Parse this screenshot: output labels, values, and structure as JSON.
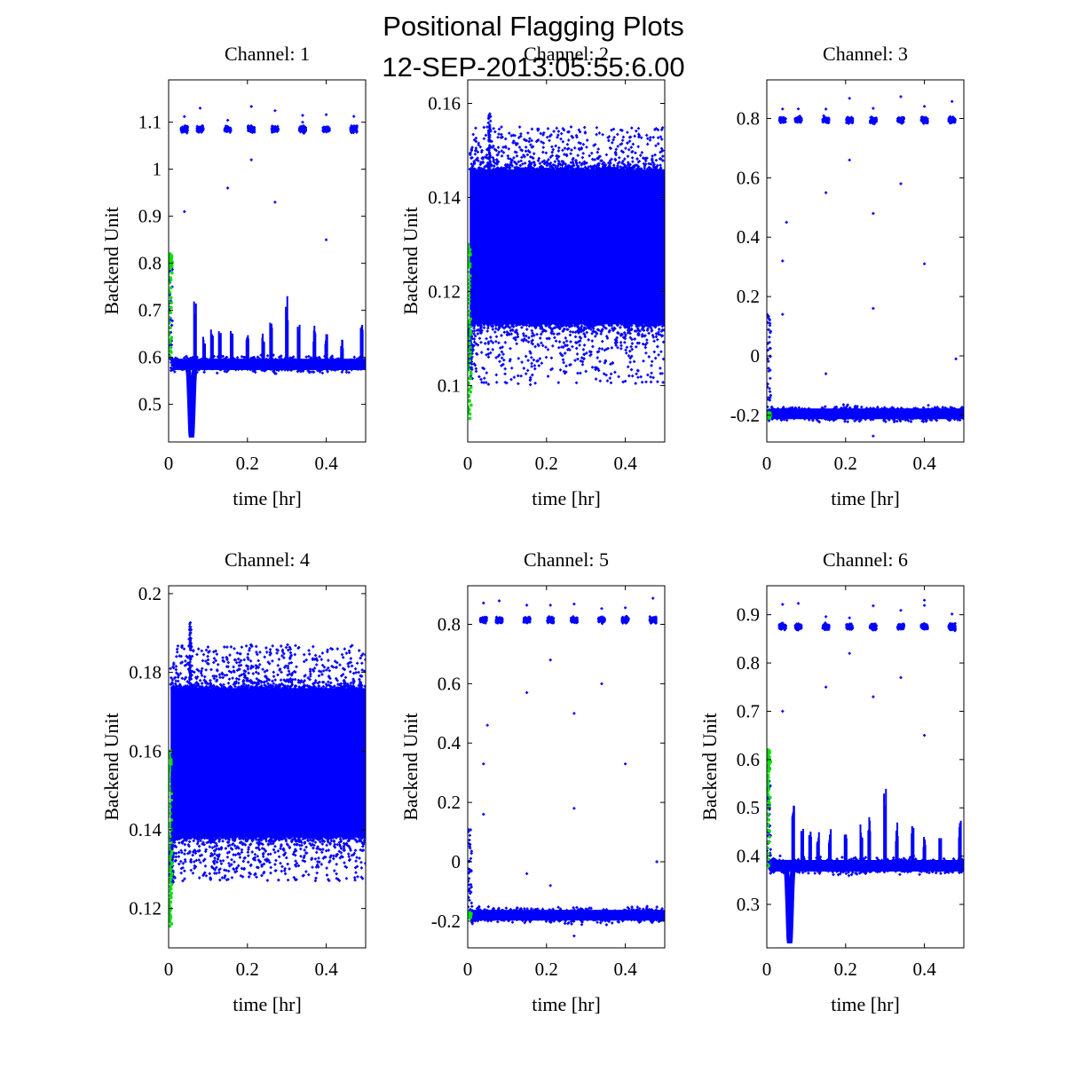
{
  "figure": {
    "title_line1": "Positional Flagging Plots",
    "title_line2": "12-SEP-2013:05:55:6.00"
  },
  "colors": {
    "data": "#0000ff",
    "flagged": "#00e000",
    "axes": "#000000"
  },
  "chart_data": [
    {
      "type": "scatter",
      "title": "Channel: 1",
      "xlabel": "time [hr]",
      "ylabel": "Backend Unit",
      "xlim": [
        0,
        0.5
      ],
      "ylim": [
        0.42,
        1.19
      ],
      "xticks": [
        0,
        0.2,
        0.4
      ],
      "xtick_labels": [
        "0",
        "0.2",
        "0.4"
      ],
      "yticks": [
        0.5,
        0.6,
        0.7,
        0.8,
        0.9,
        1,
        1.1
      ],
      "ytick_labels": [
        "0.5",
        "0.6",
        "0.7",
        "0.8",
        "0.9",
        "1",
        "1.1"
      ],
      "series": [
        {
          "color": "#0000ff",
          "baseline": 0.585,
          "spread": 0.012,
          "spikes": [
            [
              0.067,
              0.72
            ],
            [
              0.09,
              0.65
            ],
            [
              0.11,
              0.66
            ],
            [
              0.13,
              0.66
            ],
            [
              0.16,
              0.66
            ],
            [
              0.2,
              0.65
            ],
            [
              0.24,
              0.66
            ],
            [
              0.26,
              0.69
            ],
            [
              0.3,
              0.74
            ],
            [
              0.33,
              0.67
            ],
            [
              0.37,
              0.67
            ],
            [
              0.4,
              0.65
            ],
            [
              0.44,
              0.64
            ],
            [
              0.49,
              0.68
            ]
          ],
          "dip": [
            0.058,
            0.43
          ],
          "upper_clusters": [
            0.04,
            0.08,
            0.15,
            0.21,
            0.27,
            0.34,
            0.4,
            0.47
          ],
          "upper_level": 1.085,
          "outliers": [
            [
              0.04,
              0.91
            ],
            [
              0.15,
              0.96
            ],
            [
              0.21,
              1.02
            ],
            [
              0.27,
              0.93
            ],
            [
              0.4,
              0.85
            ],
            [
              0.34,
              1.1
            ]
          ]
        },
        {
          "color": "#00e000",
          "points": [
            [
              0.001,
              0.59
            ],
            [
              0.002,
              0.8
            ],
            [
              0.004,
              0.82
            ],
            [
              0.006,
              0.79
            ],
            [
              0.003,
              0.6
            ]
          ]
        }
      ]
    },
    {
      "type": "scatter",
      "title": "Channel: 2",
      "xlabel": "time [hr]",
      "ylabel": "Backend Unit",
      "xlim": [
        0,
        0.5
      ],
      "ylim": [
        0.088,
        0.165
      ],
      "xticks": [
        0,
        0.2,
        0.4
      ],
      "xtick_labels": [
        "0",
        "0.2",
        "0.4"
      ],
      "yticks": [
        0.1,
        0.12,
        0.14,
        0.16
      ],
      "ytick_labels": [
        "0.1",
        "0.12",
        "0.14",
        "0.16"
      ],
      "series": [
        {
          "color": "#0000ff",
          "dense_band": [
            0.113,
            0.146
          ],
          "band_scatter": [
            0.1,
            0.155
          ],
          "peak": [
            0.055,
            0.158
          ]
        },
        {
          "color": "#00e000",
          "points": [
            [
              0.002,
              0.13
            ],
            [
              0.003,
              0.125
            ],
            [
              0.004,
              0.11
            ],
            [
              0.005,
              0.093
            ],
            [
              0.003,
              0.115
            ]
          ]
        }
      ]
    },
    {
      "type": "scatter",
      "title": "Channel: 3",
      "xlabel": "time [hr]",
      "ylabel": "",
      "xlim": [
        0,
        0.5
      ],
      "ylim": [
        -0.29,
        0.93
      ],
      "xticks": [
        0,
        0.2,
        0.4
      ],
      "xtick_labels": [
        "0",
        "0.2",
        "0.4"
      ],
      "yticks": [
        -0.2,
        0,
        0.2,
        0.4,
        0.6,
        0.8
      ],
      "ytick_labels": [
        "-0.2",
        "0",
        "0.2",
        "0.4",
        "0.6",
        "0.8"
      ],
      "series": [
        {
          "color": "#0000ff",
          "baseline": -0.195,
          "spread": 0.018,
          "upper_clusters": [
            0.04,
            0.08,
            0.15,
            0.21,
            0.27,
            0.34,
            0.4,
            0.47
          ],
          "upper_level": 0.795,
          "outliers": [
            [
              0.04,
              0.32
            ],
            [
              0.04,
              0.14
            ],
            [
              0.05,
              0.45
            ],
            [
              0.15,
              0.55
            ],
            [
              0.21,
              0.66
            ],
            [
              0.27,
              0.48
            ],
            [
              0.27,
              0.16
            ],
            [
              0.34,
              0.58
            ],
            [
              0.4,
              0.31
            ],
            [
              0.48,
              -0.01
            ],
            [
              0.15,
              -0.06
            ],
            [
              0.27,
              -0.27
            ]
          ]
        },
        {
          "color": "#00e000",
          "points": [
            [
              0.002,
              -0.2
            ],
            [
              0.004,
              -0.21
            ],
            [
              0.006,
              -0.19
            ]
          ]
        }
      ]
    },
    {
      "type": "scatter",
      "title": "Channel: 4",
      "xlabel": "time [hr]",
      "ylabel": "Backend Unit",
      "xlim": [
        0,
        0.5
      ],
      "ylim": [
        0.11,
        0.202
      ],
      "xticks": [
        0,
        0.2,
        0.4
      ],
      "xtick_labels": [
        "0",
        "0.2",
        "0.4"
      ],
      "yticks": [
        0.12,
        0.14,
        0.16,
        0.18,
        0.2
      ],
      "ytick_labels": [
        "0.12",
        "0.14",
        "0.16",
        "0.18",
        "0.2"
      ],
      "series": [
        {
          "color": "#0000ff",
          "dense_band": [
            0.138,
            0.176
          ],
          "band_scatter": [
            0.127,
            0.187
          ],
          "peak": [
            0.055,
            0.193
          ]
        },
        {
          "color": "#00e000",
          "points": [
            [
              0.002,
              0.16
            ],
            [
              0.003,
              0.15
            ],
            [
              0.004,
              0.135
            ],
            [
              0.005,
              0.125
            ],
            [
              0.003,
              0.115
            ]
          ]
        }
      ]
    },
    {
      "type": "scatter",
      "title": "Channel: 5",
      "xlabel": "time [hr]",
      "ylabel": "Backend Unit",
      "xlim": [
        0,
        0.5
      ],
      "ylim": [
        -0.29,
        0.93
      ],
      "xticks": [
        0,
        0.2,
        0.4
      ],
      "xtick_labels": [
        "0",
        "0.2",
        "0.4"
      ],
      "yticks": [
        -0.2,
        0,
        0.2,
        0.4,
        0.6,
        0.8
      ],
      "ytick_labels": [
        "-0.2",
        "0",
        "0.2",
        "0.4",
        "0.6",
        "0.8"
      ],
      "series": [
        {
          "color": "#0000ff",
          "baseline": -0.18,
          "spread": 0.018,
          "upper_clusters": [
            0.04,
            0.08,
            0.15,
            0.21,
            0.27,
            0.34,
            0.4,
            0.47
          ],
          "upper_level": 0.815,
          "outliers": [
            [
              0.04,
              0.33
            ],
            [
              0.04,
              0.16
            ],
            [
              0.05,
              0.46
            ],
            [
              0.15,
              0.57
            ],
            [
              0.21,
              0.68
            ],
            [
              0.27,
              0.5
            ],
            [
              0.27,
              0.18
            ],
            [
              0.34,
              0.6
            ],
            [
              0.4,
              0.33
            ],
            [
              0.48,
              0.0
            ],
            [
              0.15,
              -0.04
            ],
            [
              0.21,
              -0.08
            ],
            [
              0.27,
              -0.25
            ]
          ]
        },
        {
          "color": "#00e000",
          "points": [
            [
              0.002,
              -0.18
            ],
            [
              0.004,
              -0.19
            ],
            [
              0.006,
              -0.17
            ]
          ]
        }
      ]
    },
    {
      "type": "scatter",
      "title": "Channel: 6",
      "xlabel": "time [hr]",
      "ylabel": "Backend Unit",
      "xlim": [
        0,
        0.5
      ],
      "ylim": [
        0.21,
        0.96
      ],
      "xticks": [
        0,
        0.2,
        0.4
      ],
      "xtick_labels": [
        "0",
        "0.2",
        "0.4"
      ],
      "yticks": [
        0.3,
        0.4,
        0.5,
        0.6,
        0.7,
        0.8,
        0.9
      ],
      "ytick_labels": [
        "0.3",
        "0.4",
        "0.5",
        "0.6",
        "0.7",
        "0.8",
        "0.9"
      ],
      "series": [
        {
          "color": "#0000ff",
          "baseline": 0.38,
          "spread": 0.012,
          "spikes": [
            [
              0.067,
              0.52
            ],
            [
              0.09,
              0.46
            ],
            [
              0.11,
              0.46
            ],
            [
              0.13,
              0.46
            ],
            [
              0.16,
              0.46
            ],
            [
              0.2,
              0.45
            ],
            [
              0.24,
              0.47
            ],
            [
              0.26,
              0.49
            ],
            [
              0.3,
              0.55
            ],
            [
              0.33,
              0.47
            ],
            [
              0.37,
              0.47
            ],
            [
              0.4,
              0.45
            ],
            [
              0.44,
              0.44
            ],
            [
              0.49,
              0.48
            ]
          ],
          "dip": [
            0.058,
            0.22
          ],
          "upper_clusters": [
            0.04,
            0.08,
            0.15,
            0.21,
            0.27,
            0.34,
            0.4,
            0.47
          ],
          "upper_level": 0.875,
          "outliers": [
            [
              0.04,
              0.7
            ],
            [
              0.15,
              0.75
            ],
            [
              0.21,
              0.82
            ],
            [
              0.27,
              0.73
            ],
            [
              0.34,
              0.77
            ],
            [
              0.4,
              0.65
            ],
            [
              0.4,
              0.93
            ]
          ]
        },
        {
          "color": "#00e000",
          "points": [
            [
              0.001,
              0.38
            ],
            [
              0.002,
              0.6
            ],
            [
              0.004,
              0.62
            ],
            [
              0.006,
              0.58
            ],
            [
              0.003,
              0.37
            ]
          ]
        }
      ]
    }
  ]
}
